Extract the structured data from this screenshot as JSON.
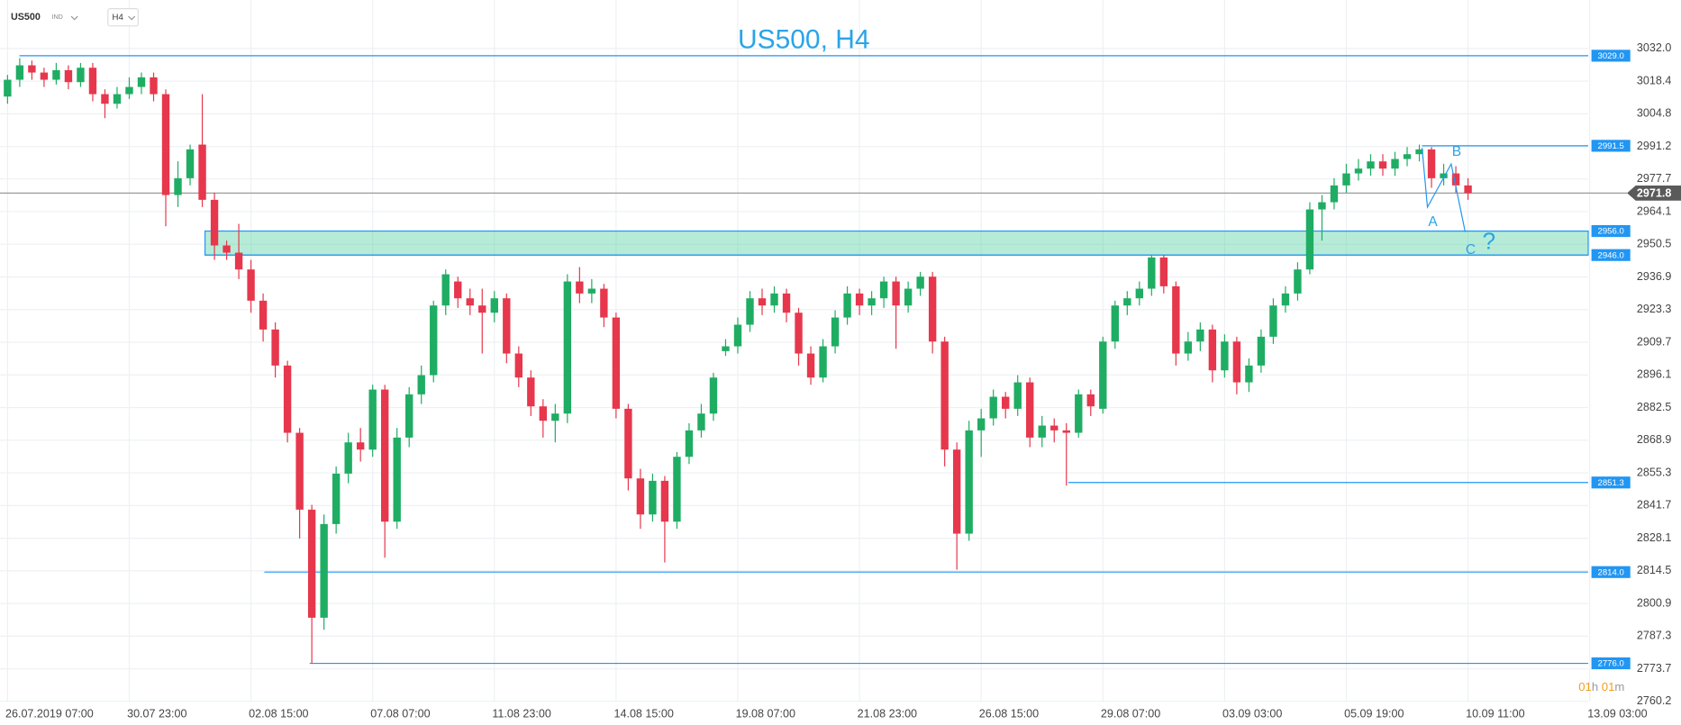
{
  "header": {
    "symbol": "US500",
    "market": "IND",
    "timeframe": "H4"
  },
  "chart_data": {
    "type": "candlestick",
    "title": "US500, H4",
    "categories": [
      "26.07.2019  07:00",
      null,
      null,
      null,
      null,
      null,
      null,
      null,
      null,
      null,
      "30.07  23:00",
      null,
      null,
      null,
      null,
      null,
      null,
      null,
      null,
      null,
      "02.08  15:00",
      null,
      null,
      null,
      null,
      null,
      null,
      null,
      null,
      null,
      "07.08  07:00",
      null,
      null,
      null,
      null,
      null,
      null,
      null,
      null,
      null,
      "11.08  23:00",
      null,
      null,
      null,
      null,
      null,
      null,
      null,
      null,
      null,
      "14.08  15:00",
      null,
      null,
      null,
      null,
      null,
      null,
      null,
      null,
      null,
      "19.08  07:00",
      null,
      null,
      null,
      null,
      null,
      null,
      null,
      null,
      null,
      "21.08  23:00",
      null,
      null,
      null,
      null,
      null,
      null,
      null,
      null,
      null,
      "26.08  15:00",
      null,
      null,
      null,
      null,
      null,
      null,
      null,
      null,
      null,
      "29.08  07:00",
      null,
      null,
      null,
      null,
      null,
      null,
      null,
      null,
      null,
      "03.09  03:00",
      null,
      null,
      null,
      null,
      null,
      null,
      null,
      null,
      null,
      "05.09  19:00",
      null,
      null,
      null,
      null,
      null,
      null,
      null,
      null,
      null,
      "10.09  11:00",
      null,
      null,
      null,
      null,
      null,
      null,
      null,
      null,
      null,
      "13.09  03:00"
    ],
    "open": [
      3012,
      3019,
      3025,
      3022,
      3019,
      3023,
      3018,
      3024,
      3013,
      3009,
      3013,
      3016,
      3020,
      3013,
      2971,
      2978,
      2992,
      2969,
      2950,
      2947,
      2940,
      2927,
      2915,
      2900,
      2872,
      2840,
      2795,
      2834,
      2855,
      2868,
      2865,
      2890,
      2835,
      2870,
      2888,
      2896,
      2925,
      2935,
      2928,
      2925,
      2922,
      2928,
      2905,
      2895,
      2883,
      2877,
      2880,
      2935,
      2930,
      2932,
      2920,
      2882,
      2853,
      2838,
      2852,
      2835,
      2862,
      2873,
      2880,
      2906,
      2908,
      2917,
      2928,
      2925,
      2930,
      2922,
      2905,
      2895,
      2908,
      2920,
      2930,
      2925,
      2928,
      2935,
      2925,
      2932,
      2937,
      2910,
      2865,
      2830,
      2873,
      2878,
      2887,
      2882,
      2893,
      2870,
      2875,
      2873,
      2872,
      2888,
      2882,
      2910,
      2925,
      2928,
      2932,
      2945,
      2933,
      2905,
      2910,
      2915,
      2898,
      2910,
      2893,
      2900,
      2912,
      2925,
      2930,
      2940,
      2965,
      2968,
      2975,
      2980,
      2982,
      2985,
      2982,
      2986,
      2988,
      2990,
      2978,
      2980,
      2975,
      null,
      null,
      null,
      null,
      null,
      null,
      null,
      null,
      null,
      null
    ],
    "high": [
      3021,
      3028,
      3027,
      3024,
      3026,
      3025,
      3026,
      3026,
      3015,
      3016,
      3020,
      3022,
      3022,
      3015,
      2985,
      2992,
      3013,
      2972,
      2952,
      2959,
      2944,
      2930,
      2918,
      2902,
      2874,
      2842,
      2838,
      2858,
      2872,
      2874,
      2892,
      2892,
      2874,
      2891,
      2900,
      2927,
      2940,
      2937,
      2932,
      2932,
      2931,
      2930,
      2908,
      2898,
      2886,
      2884,
      2938,
      2941,
      2936,
      2934,
      2922,
      2884,
      2857,
      2855,
      2854,
      2864,
      2876,
      2884,
      2897,
      2911,
      2920,
      2931,
      2932,
      2933,
      2932,
      2924,
      2908,
      2911,
      2923,
      2933,
      2932,
      2931,
      2937,
      2937,
      2935,
      2939,
      2939,
      2912,
      2868,
      2877,
      2882,
      2890,
      2889,
      2896,
      2895,
      2879,
      2878,
      2876,
      2890,
      2890,
      2912,
      2927,
      2931,
      2935,
      2946,
      2946,
      2935,
      2914,
      2918,
      2917,
      2913,
      2912,
      2903,
      2915,
      2928,
      2933,
      2943,
      2968,
      2971,
      2978,
      2984,
      2986,
      2988,
      2988,
      2989,
      2991,
      2992,
      2991,
      2984,
      2983,
      2978,
      null,
      null,
      null,
      null,
      null,
      null,
      null,
      null,
      null,
      null
    ],
    "low": [
      3009,
      3016,
      3019,
      3016,
      3017,
      3015,
      3016,
      3010,
      3003,
      3007,
      3011,
      3013,
      3010,
      2958,
      2966,
      2975,
      2966,
      2944,
      2944,
      2936,
      2922,
      2910,
      2895,
      2868,
      2828,
      2776,
      2790,
      2830,
      2851,
      2860,
      2862,
      2820,
      2832,
      2866,
      2884,
      2893,
      2921,
      2924,
      2921,
      2905,
      2918,
      2901,
      2891,
      2879,
      2870,
      2868,
      2876,
      2926,
      2926,
      2916,
      2878,
      2848,
      2832,
      2835,
      2818,
      2832,
      2859,
      2870,
      2877,
      2904,
      2905,
      2914,
      2921,
      2922,
      2918,
      2900,
      2892,
      2893,
      2905,
      2917,
      2921,
      2921,
      2924,
      2907,
      2922,
      2929,
      2905,
      2858,
      2815,
      2827,
      2862,
      2875,
      2878,
      2879,
      2866,
      2866,
      2868,
      2850,
      2870,
      2879,
      2880,
      2907,
      2921,
      2925,
      2929,
      2930,
      2900,
      2902,
      2906,
      2893,
      2895,
      2888,
      2889,
      2897,
      2909,
      2922,
      2927,
      2938,
      2952,
      2965,
      2972,
      2977,
      2979,
      2979,
      2979,
      2983,
      2985,
      2974,
      2975,
      2972,
      2969,
      null,
      null,
      null,
      null,
      null,
      null,
      null,
      null,
      null,
      null
    ],
    "close": [
      3019,
      3025,
      3022,
      3019,
      3023,
      3018,
      3024,
      3013,
      3009,
      3013,
      3016,
      3020,
      3013,
      2971,
      2978,
      2990,
      2969,
      2950,
      2947,
      2940,
      2927,
      2915,
      2900,
      2872,
      2840,
      2795,
      2834,
      2855,
      2868,
      2865,
      2890,
      2835,
      2870,
      2888,
      2896,
      2925,
      2938,
      2928,
      2925,
      2922,
      2928,
      2905,
      2895,
      2883,
      2877,
      2880,
      2935,
      2930,
      2932,
      2920,
      2882,
      2853,
      2838,
      2852,
      2835,
      2862,
      2873,
      2880,
      2895,
      2908,
      2917,
      2928,
      2925,
      2930,
      2922,
      2905,
      2895,
      2908,
      2920,
      2930,
      2925,
      2928,
      2935,
      2925,
      2932,
      2937,
      2910,
      2865,
      2830,
      2873,
      2878,
      2887,
      2882,
      2893,
      2870,
      2875,
      2873,
      2872,
      2888,
      2883,
      2910,
      2925,
      2928,
      2932,
      2945,
      2933,
      2905,
      2910,
      2915,
      2898,
      2910,
      2893,
      2900,
      2912,
      2925,
      2930,
      2940,
      2965,
      2968,
      2975,
      2980,
      2982,
      2985,
      2982,
      2986,
      2988,
      2990,
      2978,
      2980,
      2975,
      2971.8,
      null,
      null,
      null,
      null,
      null,
      null,
      null,
      null,
      null,
      null
    ],
    "up_color": "#1fad63",
    "down_color": "#e6374c",
    "ylim": [
      2753.5,
      3038.7
    ],
    "yticks": [
      {
        "value": 3032.0,
        "label": "3032.0"
      },
      3018.4,
      3004.8,
      2991.2,
      2977.7,
      2964.1,
      2950.5,
      2936.9,
      2923.3,
      2909.7,
      2896.1,
      2882.5,
      2868.9,
      2855.3,
      2841.7,
      2828.1,
      2814.5,
      2800.9,
      2787.3,
      2773.7,
      2760.2
    ],
    "grid": true,
    "current_price": 2971.8,
    "levels": [
      {
        "value": 3029.0,
        "label": "3029.0"
      },
      2991.5,
      {
        "value": 2956.0,
        "label": "2956.0"
      },
      {
        "value": 2946.0,
        "label": "2946.0"
      },
      2851.3,
      {
        "value": 2814.0,
        "label": "2814.0"
      },
      {
        "value": 2776.0,
        "label": "2776.0"
      }
    ],
    "level_color": "#2196f3",
    "pattern_labels": [
      "A",
      "B",
      "C",
      "?"
    ],
    "countdown": [
      "01",
      "h",
      "01",
      "m"
    ]
  }
}
